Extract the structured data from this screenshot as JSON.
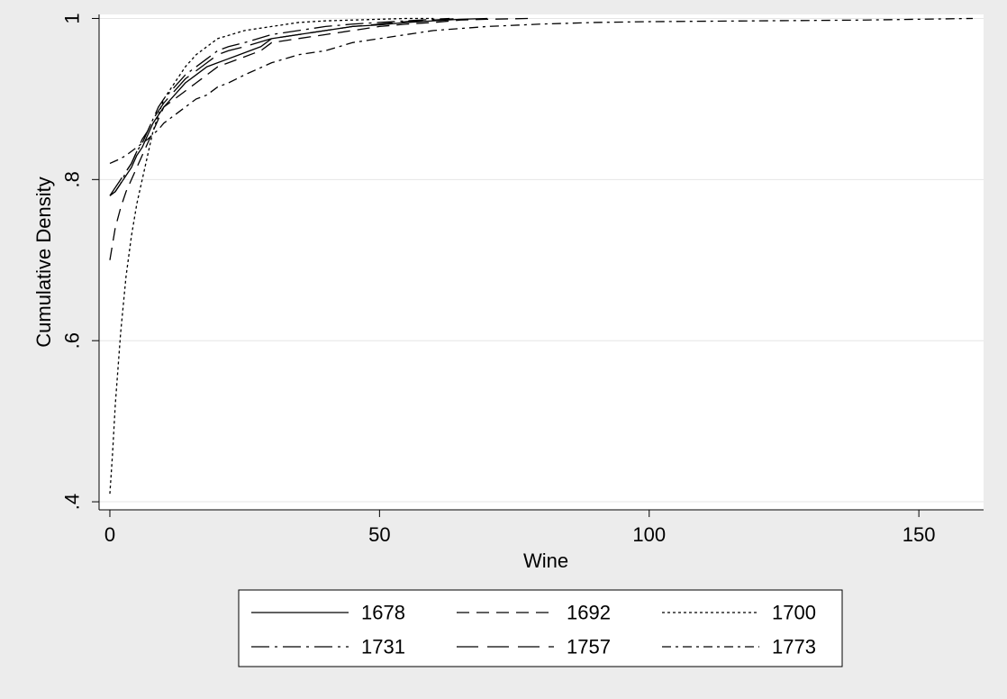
{
  "chart_data": {
    "type": "line",
    "title": "",
    "xlabel": "Wine",
    "ylabel": "Cumulative Density",
    "xlim": [
      -2,
      162
    ],
    "ylim": [
      0.39,
      1.005
    ],
    "x_ticks": [
      0,
      50,
      100,
      150
    ],
    "x_tick_labels": [
      "0",
      "50",
      "100",
      "150"
    ],
    "y_ticks": [
      0.4,
      0.6,
      0.8,
      1.0
    ],
    "y_tick_labels": [
      ".4",
      ".6",
      ".8",
      "1"
    ],
    "grid": "horizontal",
    "legend_position": "bottom",
    "series": [
      {
        "name": "1678",
        "dash": "solid",
        "x": [
          0,
          1,
          2,
          3,
          4,
          5,
          6,
          7,
          8,
          9,
          10,
          12,
          14,
          16,
          18,
          20,
          22,
          24,
          26,
          28,
          30,
          35,
          40,
          45,
          50,
          55,
          60,
          65,
          70
        ],
        "y": [
          0.78,
          0.785,
          0.795,
          0.805,
          0.815,
          0.83,
          0.84,
          0.855,
          0.87,
          0.88,
          0.89,
          0.905,
          0.92,
          0.93,
          0.94,
          0.945,
          0.95,
          0.955,
          0.96,
          0.965,
          0.975,
          0.98,
          0.985,
          0.99,
          0.992,
          0.995,
          0.997,
          0.999,
          1.0
        ]
      },
      {
        "name": "1692",
        "dash": "long",
        "x": [
          0,
          1,
          2,
          3,
          4,
          5,
          6,
          7,
          8,
          9,
          10,
          12,
          14,
          16,
          18,
          20,
          24,
          28,
          30,
          35,
          40,
          45,
          50,
          55,
          60,
          65,
          70,
          78
        ],
        "y": [
          0.7,
          0.74,
          0.765,
          0.785,
          0.8,
          0.815,
          0.83,
          0.845,
          0.86,
          0.875,
          0.89,
          0.9,
          0.91,
          0.92,
          0.93,
          0.94,
          0.95,
          0.96,
          0.97,
          0.975,
          0.98,
          0.985,
          0.99,
          0.993,
          0.995,
          0.998,
          0.999,
          1.0
        ]
      },
      {
        "name": "1700",
        "dash": "dot",
        "x": [
          0,
          0.5,
          1,
          2,
          3,
          4,
          5,
          6,
          7,
          8,
          9,
          10,
          12,
          14,
          16,
          18,
          20,
          25,
          30,
          35,
          40,
          45,
          50,
          55,
          60
        ],
        "y": [
          0.41,
          0.46,
          0.52,
          0.61,
          0.68,
          0.73,
          0.77,
          0.8,
          0.83,
          0.86,
          0.88,
          0.9,
          0.92,
          0.94,
          0.955,
          0.965,
          0.975,
          0.985,
          0.99,
          0.995,
          0.997,
          0.998,
          0.999,
          1.0,
          1.0
        ]
      },
      {
        "name": "1731",
        "dash": "dashdot",
        "x": [
          0,
          1,
          2,
          3,
          4,
          5,
          6,
          7,
          8,
          9,
          10,
          12,
          14,
          16,
          18,
          20,
          22,
          25,
          30,
          35,
          40,
          45,
          50,
          55,
          60,
          63
        ],
        "y": [
          0.78,
          0.785,
          0.795,
          0.81,
          0.82,
          0.835,
          0.845,
          0.86,
          0.875,
          0.89,
          0.9,
          0.915,
          0.93,
          0.94,
          0.95,
          0.96,
          0.965,
          0.97,
          0.98,
          0.985,
          0.99,
          0.993,
          0.995,
          0.997,
          0.999,
          1.0
        ]
      },
      {
        "name": "1757",
        "dash": "longlong",
        "x": [
          0,
          1,
          2,
          3,
          4,
          5,
          6,
          7,
          8,
          9,
          10,
          12,
          14,
          16,
          18,
          20,
          22,
          25,
          30,
          35,
          40,
          45,
          50,
          55,
          60,
          65
        ],
        "y": [
          0.78,
          0.79,
          0.8,
          0.81,
          0.82,
          0.835,
          0.85,
          0.86,
          0.875,
          0.885,
          0.895,
          0.91,
          0.925,
          0.935,
          0.945,
          0.955,
          0.96,
          0.965,
          0.975,
          0.98,
          0.985,
          0.99,
          0.993,
          0.996,
          0.998,
          1.0
        ]
      },
      {
        "name": "1773",
        "dash": "dashdot2",
        "x": [
          0,
          1,
          2,
          3,
          4,
          5,
          6,
          7,
          8,
          9,
          10,
          12,
          14,
          16,
          18,
          20,
          22,
          25,
          30,
          35,
          40,
          45,
          50,
          55,
          60,
          70,
          80,
          90,
          100,
          120,
          140,
          160
        ],
        "y": [
          0.82,
          0.823,
          0.826,
          0.83,
          0.835,
          0.84,
          0.845,
          0.85,
          0.856,
          0.862,
          0.87,
          0.88,
          0.89,
          0.9,
          0.905,
          0.915,
          0.92,
          0.93,
          0.945,
          0.955,
          0.96,
          0.97,
          0.975,
          0.98,
          0.985,
          0.99,
          0.993,
          0.995,
          0.996,
          0.997,
          0.998,
          1.0
        ]
      }
    ]
  }
}
